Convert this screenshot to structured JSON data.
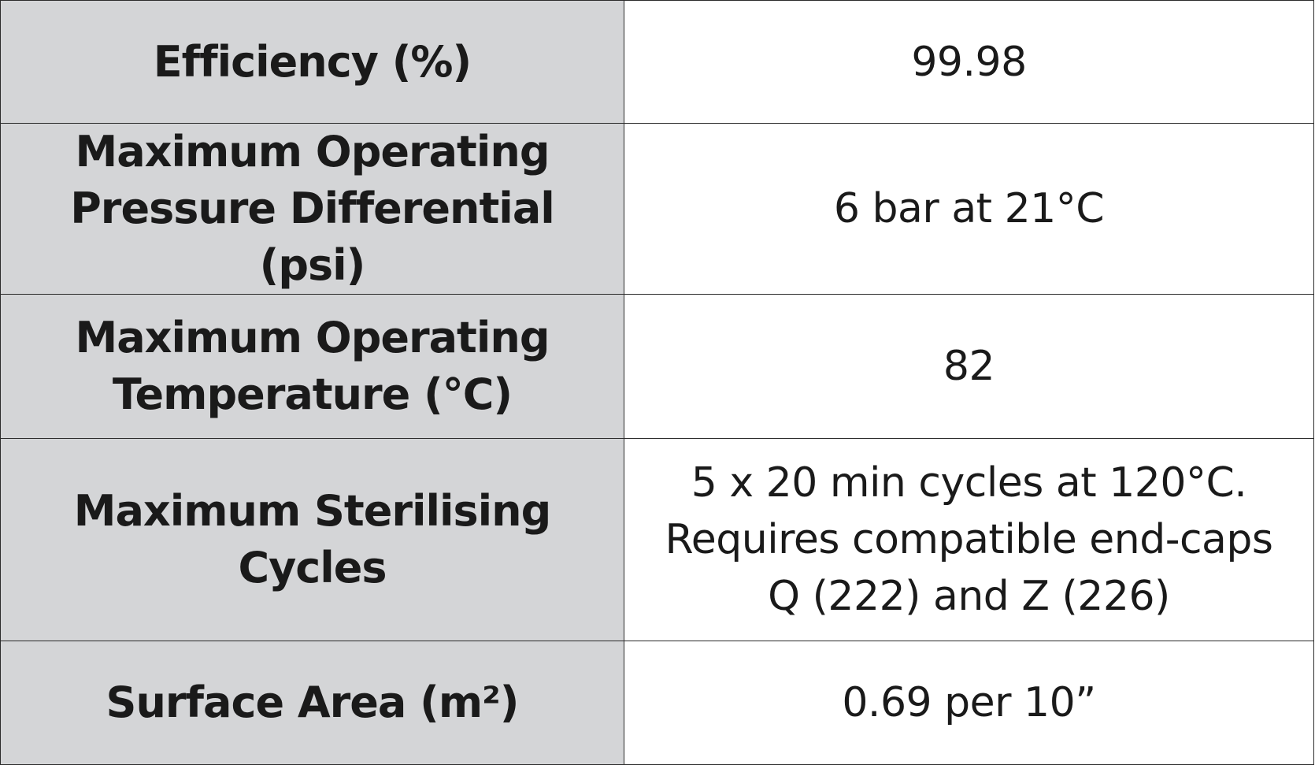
{
  "table": {
    "rows": [
      {
        "label_lines": [
          "Efficiency (%)"
        ],
        "value_lines": [
          "99.98"
        ]
      },
      {
        "label_lines": [
          "Maximum Operating",
          "Pressure Differential (psi)"
        ],
        "value_lines": [
          "6 bar at 21°C"
        ]
      },
      {
        "label_lines": [
          "Maximum Operating",
          "Temperature (°C)"
        ],
        "value_lines": [
          "82"
        ]
      },
      {
        "label_lines": [
          "Maximum Sterilising",
          "Cycles"
        ],
        "value_lines": [
          "5 x 20 min cycles at 120°C.",
          "Requires compatible end-caps",
          "Q (222) and Z (226)"
        ]
      },
      {
        "label_lines": [
          "Surface Area (m²)"
        ],
        "value_lines": [
          "0.69 per 10”"
        ]
      }
    ]
  },
  "colors": {
    "label_background": "#d4d5d7",
    "value_background": "#ffffff",
    "border": "#2b2b2b",
    "text": "#1a1a1a"
  }
}
